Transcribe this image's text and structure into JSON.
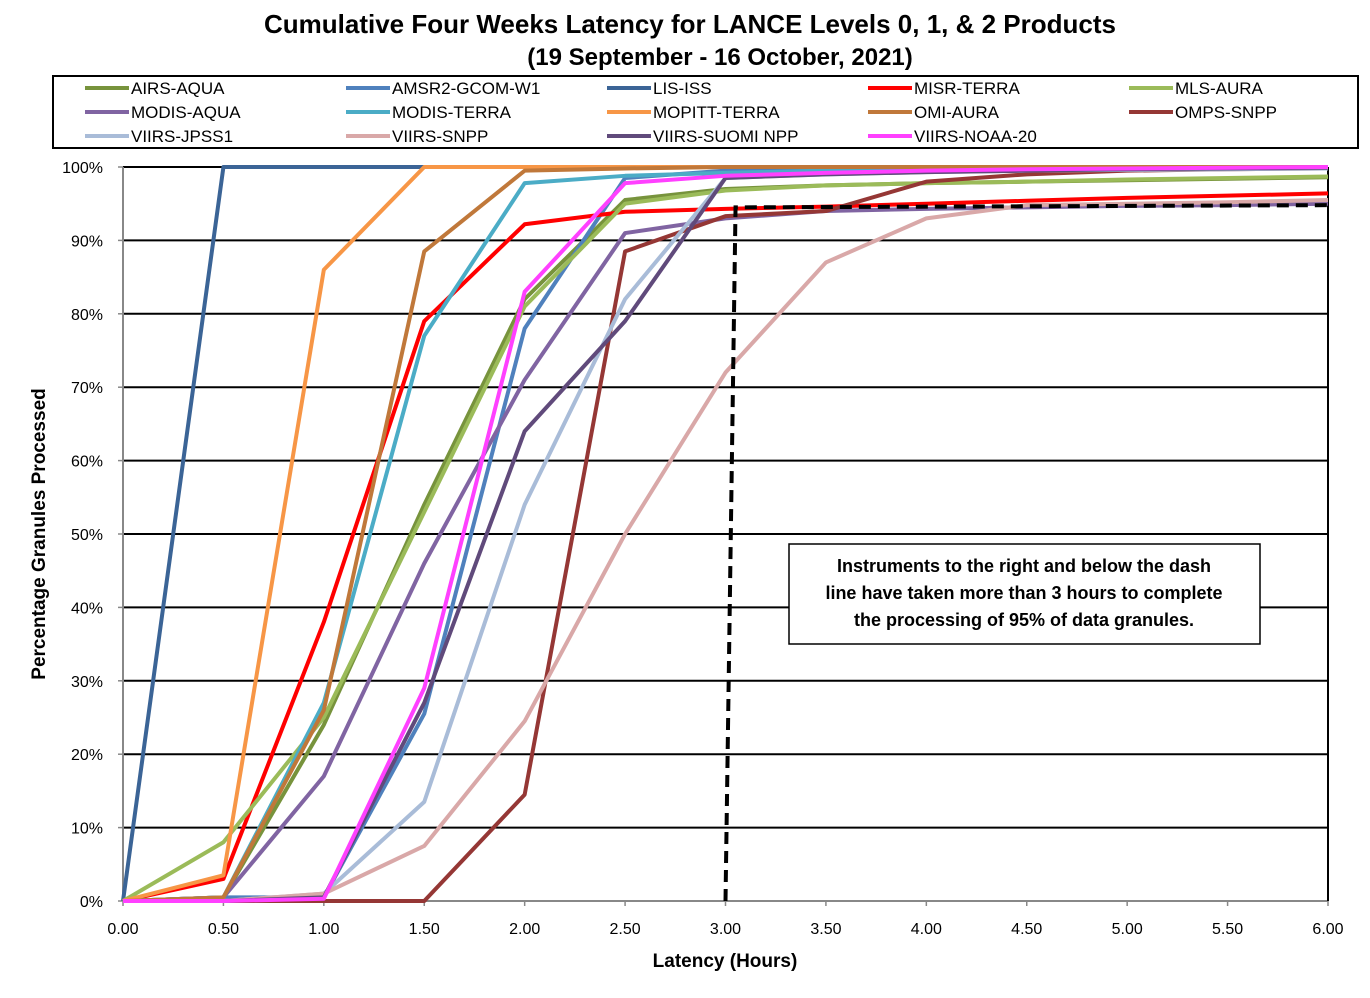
{
  "chart_data": {
    "type": "line",
    "title": "Cumulative Four Weeks Latency  for LANCE Levels 0, 1, & 2 Products",
    "subtitle": "(19  September  -  16  October,  2021)",
    "xlabel": "Latency (Hours)",
    "ylabel": "Percentage Granules Processed",
    "xlim": [
      0,
      6
    ],
    "ylim": [
      0,
      100
    ],
    "x": [
      0,
      0.5,
      1,
      1.5,
      2,
      2.5,
      3,
      3.5,
      4,
      4.5,
      5,
      5.5,
      6
    ],
    "x_tick_labels": [
      "0.00",
      "0.50",
      "1.00",
      "1.50",
      "2.00",
      "2.50",
      "3.00",
      "3.50",
      "4.00",
      "4.50",
      "5.00",
      "5.50",
      "6.00"
    ],
    "y_tick_labels": [
      "0%",
      "10%",
      "20%",
      "30%",
      "40%",
      "50%",
      "60%",
      "70%",
      "80%",
      "90%",
      "100%"
    ],
    "grid": true,
    "legend_placement": "top",
    "series": [
      {
        "name": "AIRS-AQUA",
        "color": "#77933C",
        "values": [
          0,
          0.5,
          24,
          54,
          82,
          95.5,
          97,
          97.5,
          97.8,
          98,
          98.2,
          98.4,
          98.6
        ]
      },
      {
        "name": "AMSR2-GCOM-W1",
        "color": "#4F81BD",
        "values": [
          0,
          0.5,
          0.5,
          25.5,
          78,
          98.5,
          99.5,
          99.7,
          99.8,
          99.9,
          100,
          100,
          100
        ]
      },
      {
        "name": "LIS-ISS",
        "color": "#3B6496",
        "values": [
          0,
          100,
          100,
          100,
          100,
          100,
          100,
          100,
          100,
          100,
          100,
          100,
          100
        ]
      },
      {
        "name": "MISR-TERRA",
        "color": "#FF0000",
        "values": [
          0,
          3,
          38,
          79,
          92.2,
          93.9,
          94.3,
          94.6,
          95,
          95.4,
          95.8,
          96.1,
          96.4
        ]
      },
      {
        "name": "MLS-AURA",
        "color": "#9BBB59",
        "values": [
          0,
          8,
          25,
          53,
          81,
          95,
          96.8,
          97.5,
          97.8,
          98,
          98.3,
          98.5,
          98.7
        ]
      },
      {
        "name": "MODIS-AQUA",
        "color": "#8064A2",
        "values": [
          0,
          0.5,
          17,
          46,
          71,
          91,
          93,
          94,
          94.3,
          94.5,
          94.7,
          94.8,
          95
        ]
      },
      {
        "name": "MODIS-TERRA",
        "color": "#4BACC6",
        "values": [
          0,
          0.5,
          27,
          77,
          97.8,
          98.8,
          99.2,
          99.5,
          99.7,
          99.8,
          99.9,
          100,
          100
        ]
      },
      {
        "name": "MOPITT-TERRA",
        "color": "#F79646",
        "values": [
          0,
          3.5,
          86,
          100,
          100,
          100,
          100,
          100,
          100,
          100,
          100,
          100,
          100
        ]
      },
      {
        "name": "OMI-AURA",
        "color": "#C0783A",
        "values": [
          0,
          0.5,
          26,
          88.5,
          99.5,
          99.8,
          100,
          100,
          100,
          100,
          100,
          100,
          100
        ]
      },
      {
        "name": "OMPS-SNPP",
        "color": "#953735",
        "values": [
          0,
          0,
          0,
          0,
          14.5,
          88.5,
          93.3,
          94,
          98,
          99,
          99.5,
          99.7,
          99.8
        ]
      },
      {
        "name": "VIIRS-JPSS1",
        "color": "#A9BCD8",
        "values": [
          0,
          0,
          1,
          13.5,
          54,
          82,
          98.5,
          99,
          99.3,
          99.5,
          99.6,
          99.7,
          99.8
        ]
      },
      {
        "name": "VIIRS-SNPP",
        "color": "#D9A8A8",
        "values": [
          0,
          0,
          1,
          7.5,
          24.5,
          50,
          72,
          87,
          93,
          94.8,
          95,
          95.2,
          95.5
        ]
      },
      {
        "name": "VIIRS-SUOMI NPP",
        "color": "#604A7B",
        "values": [
          0,
          0,
          0.5,
          27,
          64,
          79,
          98.5,
          99,
          99.3,
          99.5,
          99.7,
          99.8,
          99.9
        ]
      },
      {
        "name": "VIIRS-NOAA-20",
        "color": "#FF40FF",
        "values": [
          0,
          0,
          0.3,
          29,
          83,
          97.8,
          98.8,
          99.2,
          99.5,
          99.7,
          99.8,
          99.9,
          100
        ]
      }
    ],
    "threshold_line": {
      "points": [
        [
          3.0,
          0
        ],
        [
          3.05,
          94.5
        ],
        [
          6,
          94.8
        ]
      ],
      "color": "#000000"
    },
    "annotation": {
      "lines": [
        "Instruments to the right and below the dash",
        "line have taken more than 3 hours to complete",
        "the processing of 95% of data granules."
      ]
    }
  }
}
